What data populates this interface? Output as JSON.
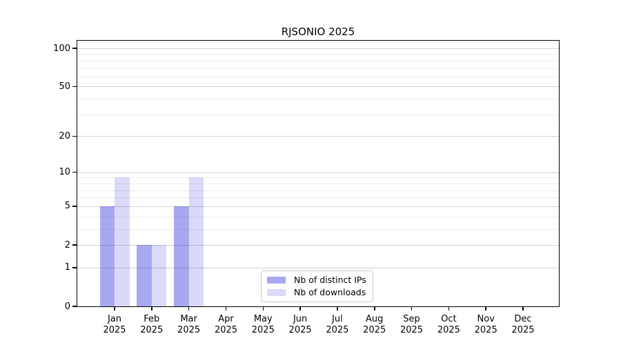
{
  "title": "RJSONIO 2025",
  "chart_data": {
    "type": "bar",
    "title": "RJSONIO 2025",
    "categories": [
      "Jan",
      "Feb",
      "Mar",
      "Apr",
      "May",
      "Jun",
      "Jul",
      "Aug",
      "Sep",
      "Oct",
      "Nov",
      "Dec"
    ],
    "x_year": "2025",
    "series": [
      {
        "name": "Nb of distinct IPs",
        "color": "#a8a8f0",
        "values": [
          5,
          2,
          5,
          0,
          0,
          0,
          0,
          0,
          0,
          0,
          0,
          0
        ]
      },
      {
        "name": "Nb of downloads",
        "color": "#dadaf8",
        "values": [
          9,
          2,
          9,
          0,
          0,
          0,
          0,
          0,
          0,
          0,
          0,
          0
        ]
      }
    ],
    "ylabel": "",
    "xlabel": "",
    "y_scale": "log10(1+x)",
    "ylim": [
      0,
      110
    ],
    "y_ticks": [
      0,
      1,
      2,
      5,
      10,
      20,
      50,
      100
    ],
    "y_minor_gridlines": [
      3,
      4,
      6,
      7,
      8,
      9,
      30,
      40,
      60,
      70,
      80,
      90
    ],
    "grid": "horizontal, drawn over bars",
    "legend_position": "bottom-center-inside"
  }
}
